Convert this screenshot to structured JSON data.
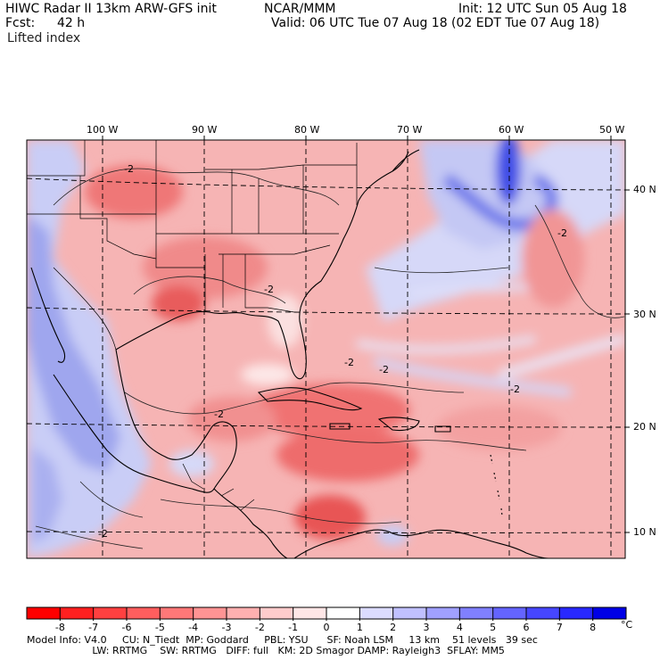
{
  "header": {
    "model_title": "HIWC Radar II 13km ARW-GFS init",
    "org": "NCAR/MMM",
    "init": "Init: 12 UTC Sun 05 Aug 18",
    "fcst_label": "Fcst:",
    "fcst_value": "42 h",
    "valid": "Valid: 06 UTC Tue 07 Aug 18 (02 EDT Tue 07 Aug 18)",
    "field": "Lifted index"
  },
  "map": {
    "lon_labels": [
      "100 W",
      "90 W",
      "80 W",
      "70 W",
      "60 W",
      "50 W"
    ],
    "lat_labels": [
      "40 N",
      "30 N",
      "20 N",
      "10 N"
    ],
    "contour_labels": [
      "-2",
      "-2",
      "-2",
      "-2",
      "-2",
      "-2",
      "-2",
      "-2"
    ],
    "colors": {
      "strong_unstable": "#ff3c3c",
      "unstable": "#f7a0a0",
      "neutral": "#ffffff",
      "stable": "#c8c8f8",
      "strong_stable": "#4444e8"
    }
  },
  "colorbar": {
    "unit": "°C",
    "labels": [
      "-8",
      "-7",
      "-6",
      "-5",
      "-4",
      "-3",
      "-2",
      "-1",
      "0",
      "1",
      "2",
      "3",
      "4",
      "5",
      "6",
      "7",
      "8"
    ],
    "colors": [
      "#ff0000",
      "#ff2020",
      "#ff4040",
      "#ff5e5e",
      "#ff7878",
      "#ff9494",
      "#ffb0b0",
      "#ffcccc",
      "#ffe6e6",
      "#ffffff",
      "#dcdcff",
      "#c0c0ff",
      "#a0a0ff",
      "#8080ff",
      "#6464ff",
      "#4646ff",
      "#2828ff",
      "#0000e6"
    ]
  },
  "footer": {
    "line1": "Model Info: V4.0     CU: N_Tiedt  MP: Goddard     PBL: YSU      SF: Noah LSM     13 km    51 levels   39 sec",
    "line2": "                     LW: RRTMG    SW: RRTMG   DIFF: full   KM: 2D Smagor DAMP: Rayleigh3  SFLAY: MM5"
  }
}
